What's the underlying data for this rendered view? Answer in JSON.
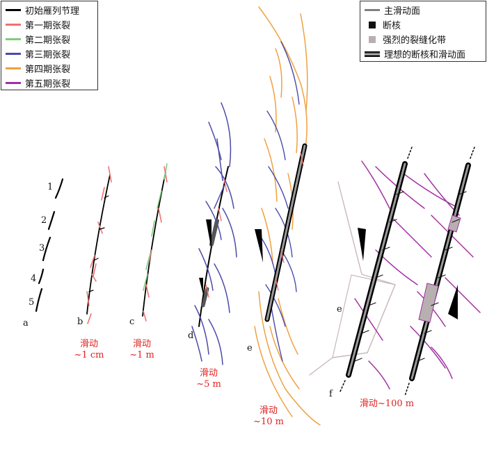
{
  "legend_left": {
    "items": [
      {
        "label": "初始雁列节理",
        "color": "#000000"
      },
      {
        "label": "第一期张裂",
        "color": "#f07070"
      },
      {
        "label": "第二期张裂",
        "color": "#7fcc7f"
      },
      {
        "label": "第三期张裂",
        "color": "#4a4aa8"
      },
      {
        "label": "第四期张裂",
        "color": "#f0a040"
      },
      {
        "label": "第五期张裂",
        "color": "#a030a0"
      }
    ]
  },
  "legend_right": {
    "items": [
      {
        "label": "主滑动面",
        "type": "line",
        "color": "#808080"
      },
      {
        "label": "断核",
        "type": "box",
        "color": "#111111"
      },
      {
        "label": "强烈的裂缝化带",
        "type": "box",
        "color": "#b8b0b0"
      },
      {
        "label": "理想的断核和滑动面",
        "type": "double"
      }
    ]
  },
  "joint_numbers": [
    "1",
    "2",
    "3",
    "4",
    "5"
  ],
  "stage_letters": {
    "a": "a",
    "b": "b",
    "c": "c",
    "d": "d",
    "e1": "e",
    "e2": "e",
    "f": "f"
  },
  "slip_labels": {
    "b_line1": "滑动",
    "b_line2": "~1 cm",
    "c_line1": "滑动",
    "c_line2": "~1 m",
    "d_line1": "滑动",
    "d_line2": "~5 m",
    "e_line1": "滑动",
    "e_line2": "~10 m",
    "f_line1": "滑动~100 m"
  }
}
